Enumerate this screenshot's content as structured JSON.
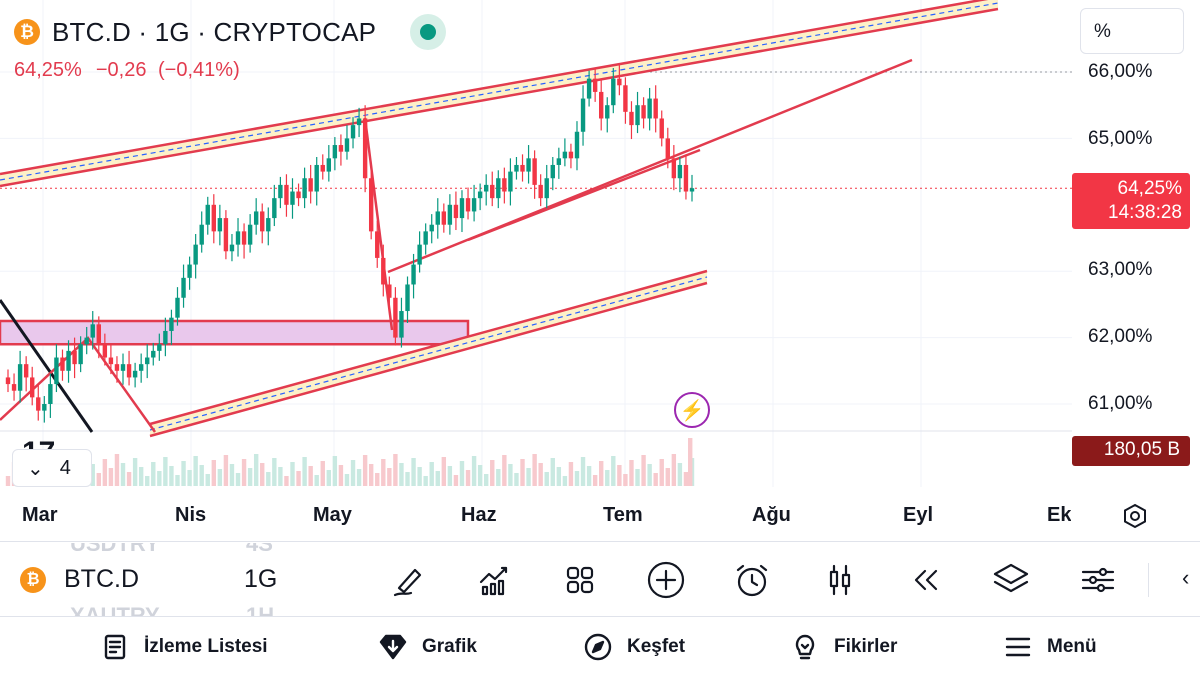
{
  "chart": {
    "symbol": "BTC.D",
    "interval": "1G",
    "exchange": "CRYPTOCAP",
    "title": "BTC.D · 1G · CRYPTOCAP",
    "coin_letter": "₿",
    "quote": {
      "last": "64,25%",
      "change": "−0,26",
      "change_pct": "(−0,41%)"
    },
    "logo_text": "17",
    "indicators_collapsed_count": "4",
    "colors": {
      "up": "#089981",
      "down": "#f23645",
      "drawing": "#e23b4e",
      "zone": "#e9c8ec",
      "channel_fill": "#fdf1c9",
      "volume_tag": "#8b1a1a"
    }
  },
  "price_axis": {
    "mode_button": "%",
    "labels": [
      "66,00%",
      "65,00%",
      "63,00%",
      "62,00%",
      "61,00%"
    ],
    "current_price": "64,25%",
    "countdown": "14:38:28",
    "volume": "180,05 B"
  },
  "time_axis": {
    "labels": [
      "Mar",
      "Nis",
      "May",
      "Haz",
      "Tem",
      "Ağu",
      "Eyl",
      "Ek"
    ]
  },
  "toolbar": {
    "symbol": "BTC.D",
    "interval": "1G",
    "ghost_symbols": [
      {
        "name": "USDTRY",
        "interval": "4S"
      },
      {
        "name": "XAUTRY",
        "interval": "1H"
      }
    ],
    "tools": [
      "drawing-tools-icon",
      "indicators-icon",
      "templates-icon",
      "add-icon",
      "alert-icon",
      "chart-type-icon",
      "replay-icon",
      "layers-icon",
      "settings-sliders-icon"
    ]
  },
  "bottom_nav": [
    {
      "label": "İzleme Listesi",
      "icon": "watchlist-icon"
    },
    {
      "label": "Grafik",
      "icon": "chart-gem-icon"
    },
    {
      "label": "Keşfet",
      "icon": "compass-icon"
    },
    {
      "label": "Fikirler",
      "icon": "lightbulb-icon"
    },
    {
      "label": "Menü",
      "icon": "menu-icon"
    }
  ],
  "chart_data": {
    "type": "candlestick",
    "y_unit": "%",
    "y_ticks": [
      66,
      65,
      63,
      62,
      61
    ],
    "ylim": [
      60.6,
      66.5
    ],
    "x_ticks": [
      "Mar",
      "Nis",
      "May",
      "Haz",
      "Tem",
      "Ağu",
      "Eyl",
      "Ek"
    ],
    "last_close": 64.25,
    "closes": [
      61.3,
      61.2,
      61.6,
      61.4,
      61.1,
      60.9,
      61.0,
      61.3,
      61.7,
      61.5,
      61.8,
      61.6,
      61.9,
      62.0,
      62.2,
      61.9,
      61.7,
      61.6,
      61.5,
      61.6,
      61.4,
      61.5,
      61.6,
      61.7,
      61.8,
      61.9,
      62.1,
      62.3,
      62.6,
      62.9,
      63.1,
      63.4,
      63.7,
      64.0,
      63.6,
      63.8,
      63.3,
      63.4,
      63.6,
      63.4,
      63.7,
      63.9,
      63.6,
      63.8,
      64.1,
      64.3,
      64.0,
      64.2,
      64.1,
      64.4,
      64.2,
      64.6,
      64.5,
      64.7,
      64.9,
      64.8,
      65.0,
      65.2,
      65.3,
      64.4,
      63.6,
      63.2,
      62.8,
      62.6,
      62.0,
      62.4,
      62.8,
      63.1,
      63.4,
      63.6,
      63.7,
      63.9,
      63.7,
      64.0,
      63.8,
      64.1,
      63.9,
      64.1,
      64.2,
      64.3,
      64.1,
      64.4,
      64.2,
      64.5,
      64.6,
      64.5,
      64.7,
      64.3,
      64.1,
      64.4,
      64.6,
      64.7,
      64.8,
      64.7,
      65.1,
      65.6,
      65.9,
      65.7,
      65.3,
      65.5,
      65.9,
      65.8,
      65.4,
      65.2,
      65.5,
      65.3,
      65.6,
      65.3,
      65.0,
      64.7,
      64.4,
      64.6,
      64.2,
      64.25
    ],
    "volume": {
      "last_label": "180,05 B"
    },
    "drawings": [
      {
        "type": "ascending-channel-upper"
      },
      {
        "type": "ascending-channel-lower"
      },
      {
        "type": "rising-wedge-trendlines"
      },
      {
        "type": "support-zone",
        "range": [
          61.9,
          62.25
        ]
      }
    ]
  }
}
